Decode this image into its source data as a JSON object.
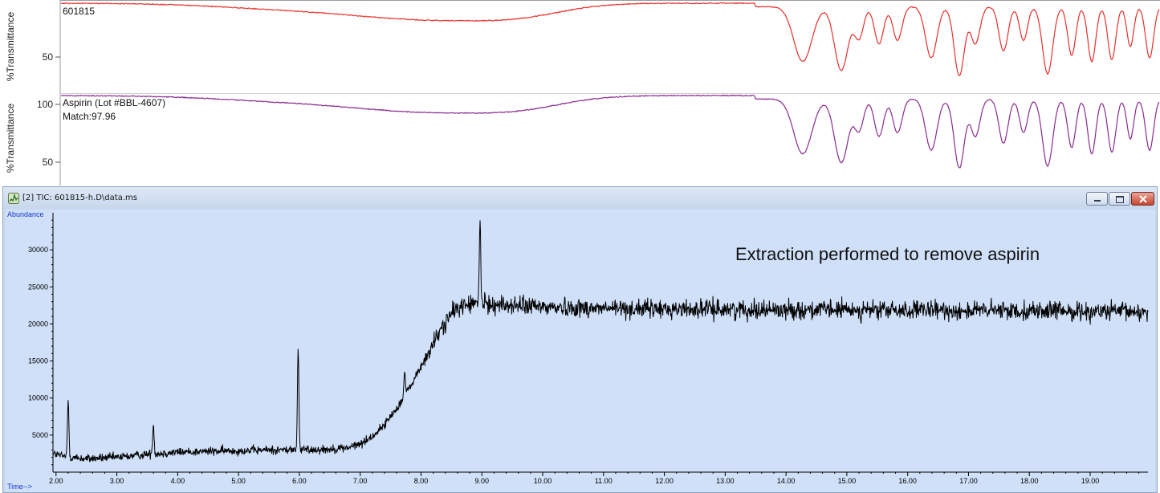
{
  "ir": {
    "top": {
      "ylabel": "%Transmittance",
      "sample_label": "601815",
      "tick_labels": [
        "50"
      ],
      "color": "#e8302a"
    },
    "bottom": {
      "ylabel": "%Transmittance",
      "sample_label": "Aspirin (Lot #BBL-4607)",
      "match_label": "Match:97.96",
      "tick_labels": [
        "100",
        "50"
      ],
      "color": "#8a2b8e"
    }
  },
  "window": {
    "title": "[2] TIC: 601815-h.D\\data.ms",
    "icon": "chromatogram-icon",
    "buttons": [
      "minimize-icon",
      "maximize-icon",
      "close-icon"
    ],
    "accent": "#cfe0f8"
  },
  "annotation": "Extraction performed to remove aspirin",
  "chart_data": {
    "type": "line",
    "ylabel": "Abundance",
    "xlabel": "Time-->",
    "xlim": [
      1.95,
      19.95
    ],
    "ylim": [
      0,
      35000
    ],
    "x_ticks": [
      "2.00",
      "3.00",
      "4.00",
      "5.00",
      "6.00",
      "7.00",
      "8.00",
      "9.00",
      "10.00",
      "11.00",
      "12.00",
      "13.00",
      "14.00",
      "15.00",
      "16.00",
      "17.00",
      "18.00",
      "19.00"
    ],
    "y_ticks": [
      "5000",
      "10000",
      "15000",
      "20000",
      "25000",
      "30000"
    ],
    "y_tick_values": [
      5000,
      10000,
      15000,
      20000,
      25000,
      30000
    ],
    "line_color": "#000000",
    "background": "#cfe0f8",
    "series": [
      {
        "x": [
          1.95,
          2.2,
          2.5,
          3.0,
          3.5,
          4.0,
          4.5,
          5.0,
          5.5,
          6.0,
          6.5,
          6.8,
          7.0,
          7.2,
          7.4,
          7.6,
          7.8,
          8.0,
          8.2,
          8.4,
          8.6,
          8.8,
          9.0,
          9.5,
          10.0,
          11.0,
          12.0,
          13.0,
          14.0,
          15.0,
          16.0,
          17.0,
          18.0,
          19.0,
          19.95
        ],
        "y": [
          2500,
          2000,
          1800,
          2000,
          2400,
          2700,
          2800,
          2900,
          3000,
          3000,
          3100,
          3300,
          3800,
          4800,
          6400,
          8600,
          11200,
          14200,
          17300,
          20300,
          22200,
          22700,
          22700,
          22500,
          22300,
          22100,
          22000,
          22000,
          21900,
          21900,
          21800,
          21800,
          21800,
          21700,
          21600
        ]
      }
    ],
    "peaks": [
      {
        "x": 2.2,
        "y": 9800
      },
      {
        "x": 3.6,
        "y": 6600
      },
      {
        "x": 5.98,
        "y": 16600
      },
      {
        "x": 7.73,
        "y": 13500
      },
      {
        "x": 8.97,
        "y": 33800
      }
    ]
  }
}
